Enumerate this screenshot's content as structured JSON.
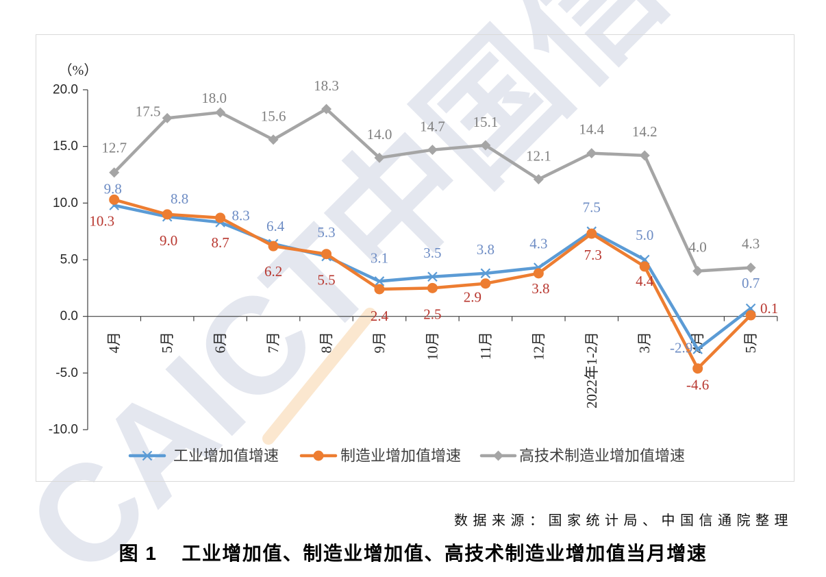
{
  "figure": {
    "source": "数据来源：国家统计局、中国信通院整理",
    "caption_label": "图 1",
    "watermark": "CAICT中国信通"
  },
  "chart_data": {
    "type": "line",
    "title": "工业增加值、制造业增加值、高技术制造业增加值当月增速",
    "ylabel": "（%）",
    "ylim": [
      -10,
      20
    ],
    "ytick_labels": [
      "20.0",
      "15.0",
      "10.0",
      "5.0",
      "0.0",
      "-5.0",
      "-10.0"
    ],
    "grid": false,
    "legend": "bottom",
    "categories": [
      "4月",
      "5月",
      "6月",
      "7月",
      "8月",
      "9月",
      "10月",
      "11月",
      "12月",
      "2022年1-2月",
      "3月",
      "4月",
      "5月"
    ],
    "series": [
      {
        "name": "工业增加值增速",
        "line_color": "#5b9bd5",
        "label_color": "#6d8cc4",
        "marker": "cross",
        "values": [
          9.8,
          8.8,
          8.3,
          6.4,
          5.3,
          3.1,
          3.5,
          3.8,
          4.3,
          7.5,
          5.0,
          -2.9,
          0.7
        ]
      },
      {
        "name": "制造业增加值增速",
        "line_color": "#ed7d31",
        "label_color": "#b8372f",
        "marker": "circle",
        "values": [
          10.3,
          9.0,
          8.7,
          6.2,
          5.5,
          2.4,
          2.5,
          2.9,
          3.8,
          7.3,
          4.4,
          -4.6,
          0.1
        ]
      },
      {
        "name": "高技术制造业增加值增速",
        "line_color": "#a5a5a5",
        "label_color": "#7f7f7f",
        "marker": "diamond",
        "values": [
          12.7,
          17.5,
          18.0,
          15.6,
          18.3,
          14.0,
          14.7,
          15.1,
          12.1,
          14.4,
          14.2,
          4.0,
          4.3
        ]
      }
    ]
  }
}
